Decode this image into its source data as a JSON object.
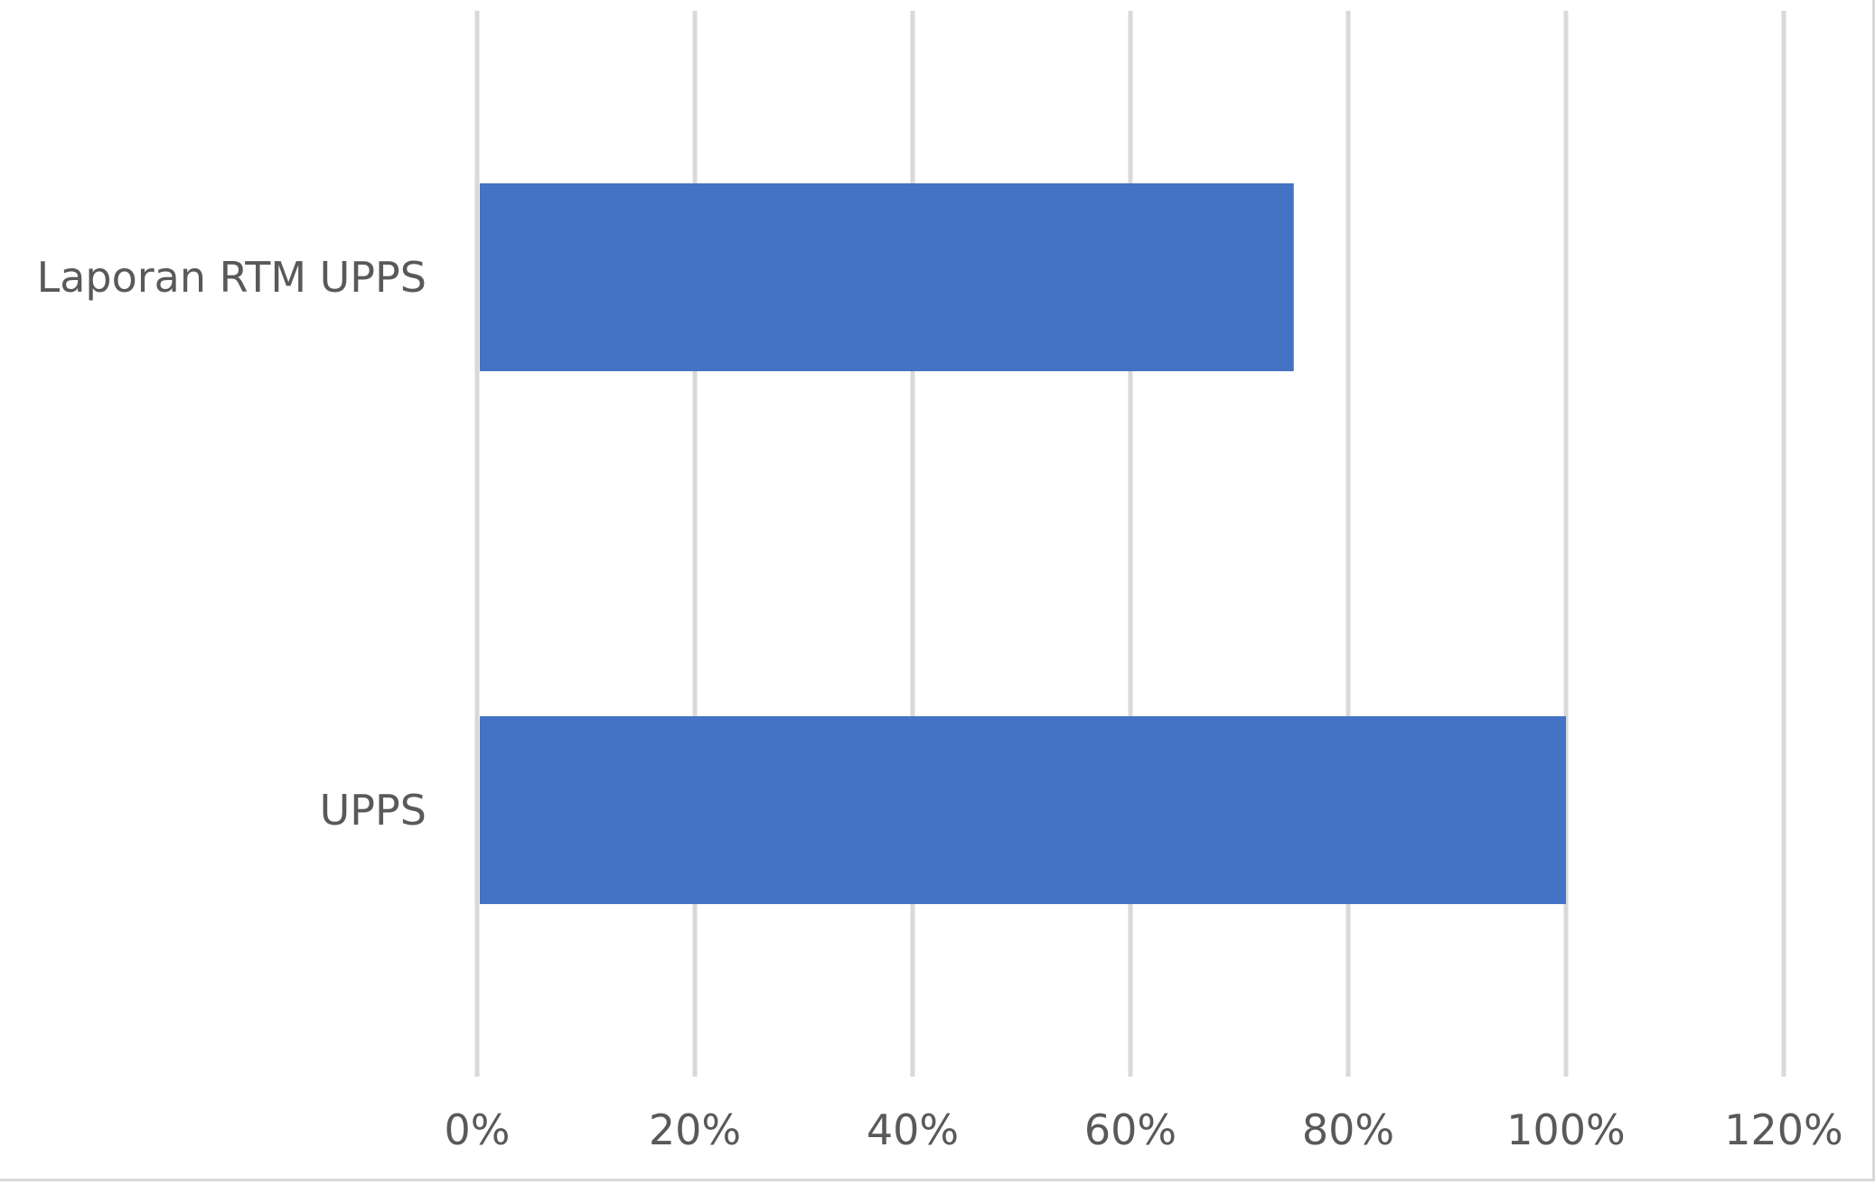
{
  "chart_data": {
    "type": "bar",
    "orientation": "horizontal",
    "categories": [
      "Laporan RTM UPPS",
      "UPPS"
    ],
    "values": [
      0.75,
      1.0
    ],
    "title": "",
    "xlabel": "",
    "ylabel": "",
    "xlim": [
      0,
      1.2
    ],
    "x_ticks": [
      0,
      0.2,
      0.4,
      0.6,
      0.8,
      1.0,
      1.2
    ],
    "x_tick_labels": [
      "0%",
      "20%",
      "40%",
      "60%",
      "80%",
      "100%",
      "120%"
    ],
    "grid": "vertical",
    "legend": "none",
    "bar_color": "#4472C4",
    "grid_color": "#d9d9d9",
    "text_color": "#595959"
  }
}
